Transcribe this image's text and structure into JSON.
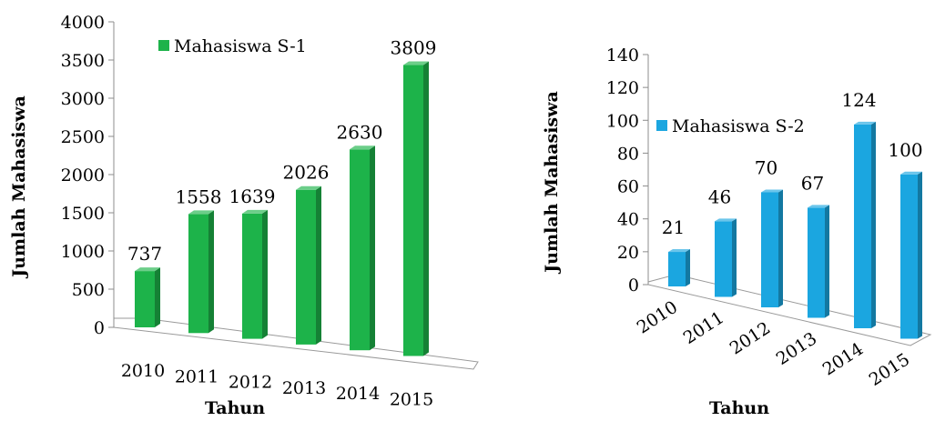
{
  "chart_data": [
    {
      "type": "bar",
      "categories": [
        "2010",
        "2011",
        "2012",
        "2013",
        "2014",
        "2015"
      ],
      "series": [
        {
          "name": "Mahasiswa S-1",
          "values": [
            737,
            1558,
            1639,
            2026,
            2630,
            3809
          ],
          "color": "#1db34a"
        }
      ],
      "data_labels": [
        "737",
        "1558",
        "1639",
        "2026",
        "2630",
        "3809"
      ],
      "xlabel": "Tahun",
      "ylabel": "Jumlah Mahasiswa",
      "ylim": [
        0,
        4000
      ],
      "yticks": [
        0,
        500,
        1000,
        1500,
        2000,
        2500,
        3000,
        3500,
        4000
      ],
      "grid": false,
      "legend": "top-left",
      "style": "3d-column"
    },
    {
      "type": "bar",
      "categories": [
        "2010",
        "2011",
        "2012",
        "2013",
        "2014",
        "2015"
      ],
      "series": [
        {
          "name": "Mahasiswa S-2",
          "values": [
            21,
            46,
            70,
            67,
            124,
            100
          ],
          "color": "#1ba6e0"
        }
      ],
      "data_labels": [
        "21",
        "46",
        "70",
        "67",
        "124",
        "100"
      ],
      "xlabel": "Tahun",
      "ylabel": "Jumlah Mahasiswa",
      "ylim": [
        0,
        140
      ],
      "yticks": [
        0,
        20,
        40,
        60,
        80,
        100,
        120,
        140
      ],
      "grid": false,
      "legend": "top-left",
      "style": "3d-column"
    }
  ]
}
